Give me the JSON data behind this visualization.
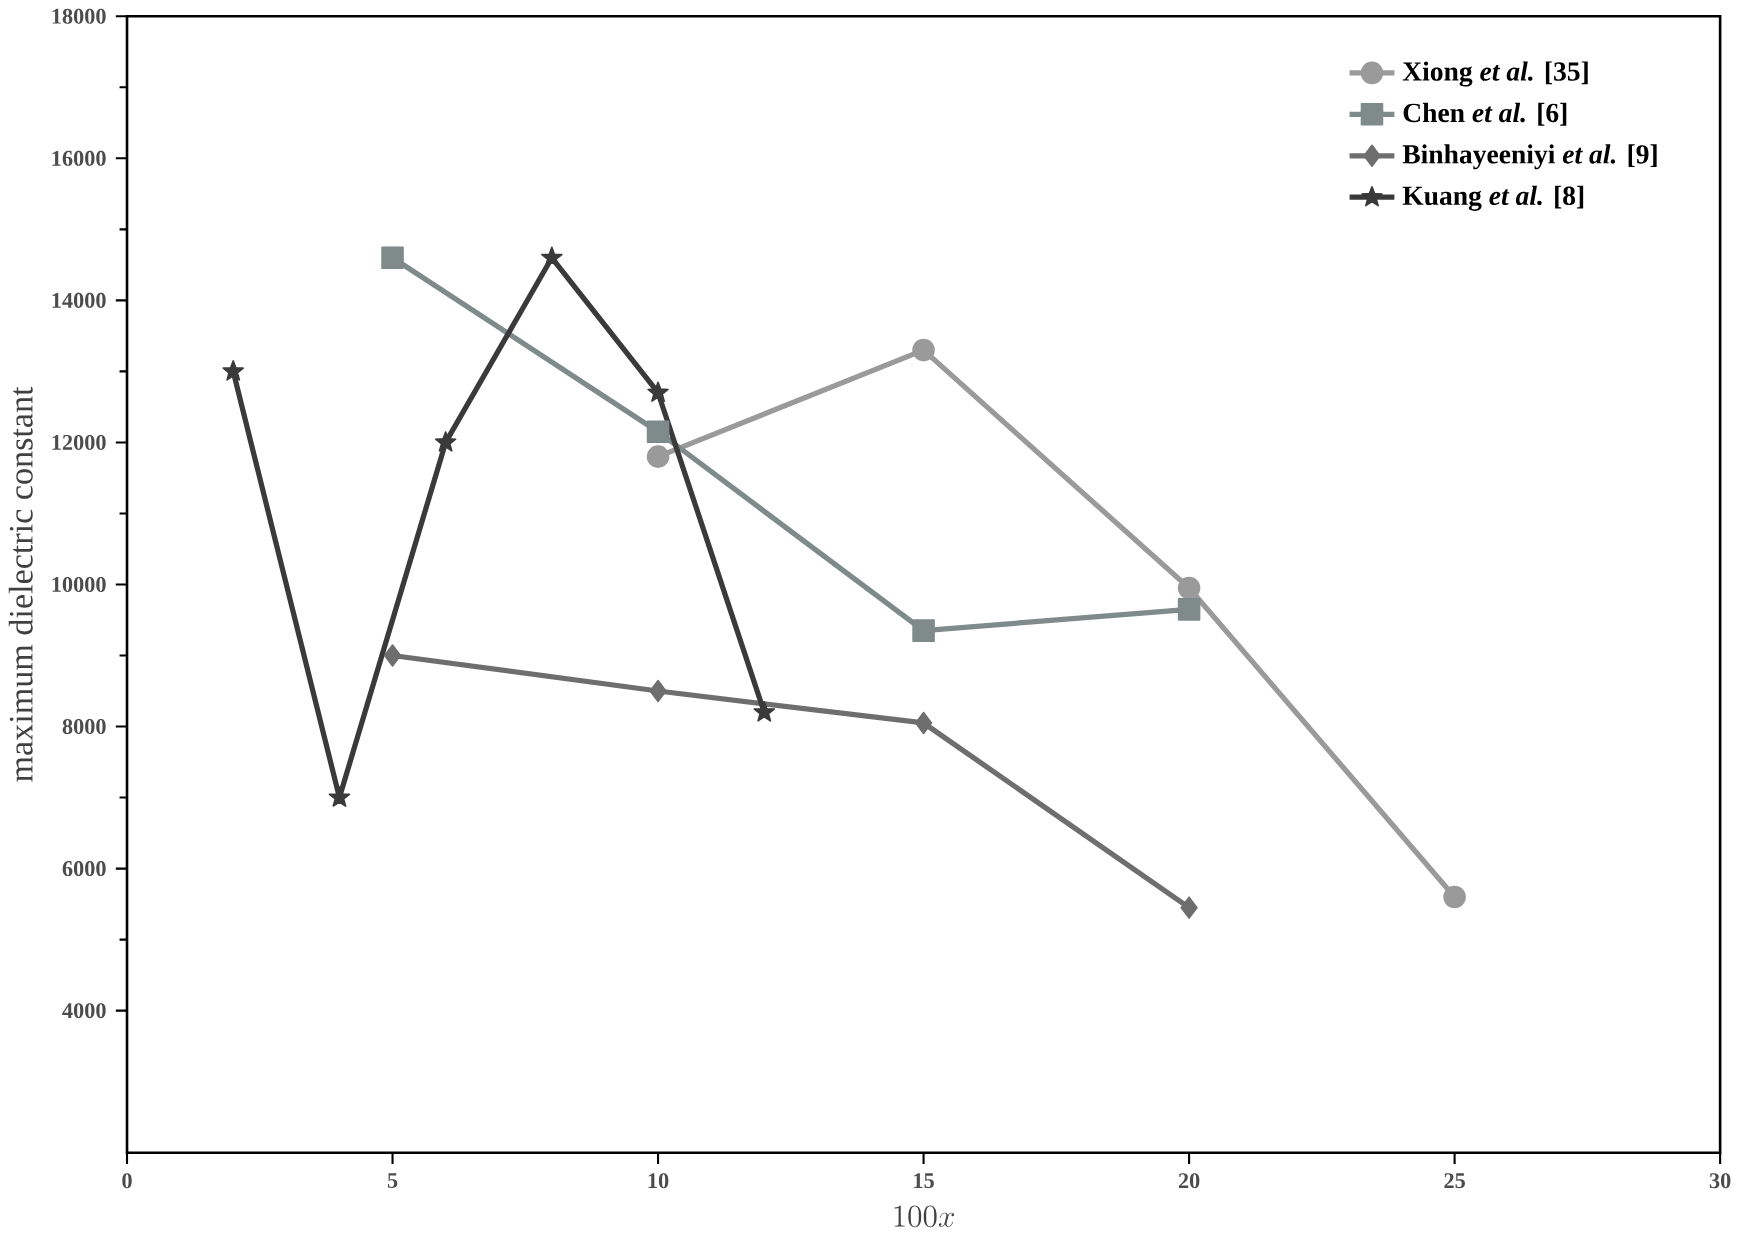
{
  "chart_data": {
    "type": "line",
    "xlabel": "100x",
    "ylabel": "maximum dielectric constant",
    "xlim": [
      0,
      30
    ],
    "xticks": [
      0,
      5,
      10,
      15,
      20,
      25,
      30
    ],
    "ylim": [
      2000,
      18000
    ],
    "yticks": [
      4000,
      6000,
      8000,
      10000,
      12000,
      14000,
      16000,
      18000
    ],
    "legend": "top right",
    "grid": false,
    "series": [
      {
        "name": "Xiong *et al.* [35]",
        "color": "#9a9a9a",
        "marker": "circle",
        "x": [
          10,
          15,
          20,
          25
        ],
        "values": [
          11800,
          13300,
          9950,
          5600
        ]
      },
      {
        "name": "Chen *et al.* [6]",
        "color": "#7f8a8a",
        "marker": "square",
        "x": [
          5,
          10,
          15,
          20
        ],
        "values": [
          14600,
          12150,
          9350,
          9650
        ]
      },
      {
        "name": "Binhayeeniyi *et al.* [9]",
        "color": "#6e6e6e",
        "marker": "diamond",
        "x": [
          5,
          10,
          15,
          20
        ],
        "values": [
          9000,
          8500,
          8050,
          5450
        ]
      },
      {
        "name": "Kuang *et al.* [8]",
        "color": "#3a3a3a",
        "marker": "star",
        "x": [
          2,
          4,
          6,
          8,
          10,
          12
        ],
        "values": [
          13000,
          7000,
          12000,
          14600,
          12700,
          8200
        ]
      }
    ]
  }
}
